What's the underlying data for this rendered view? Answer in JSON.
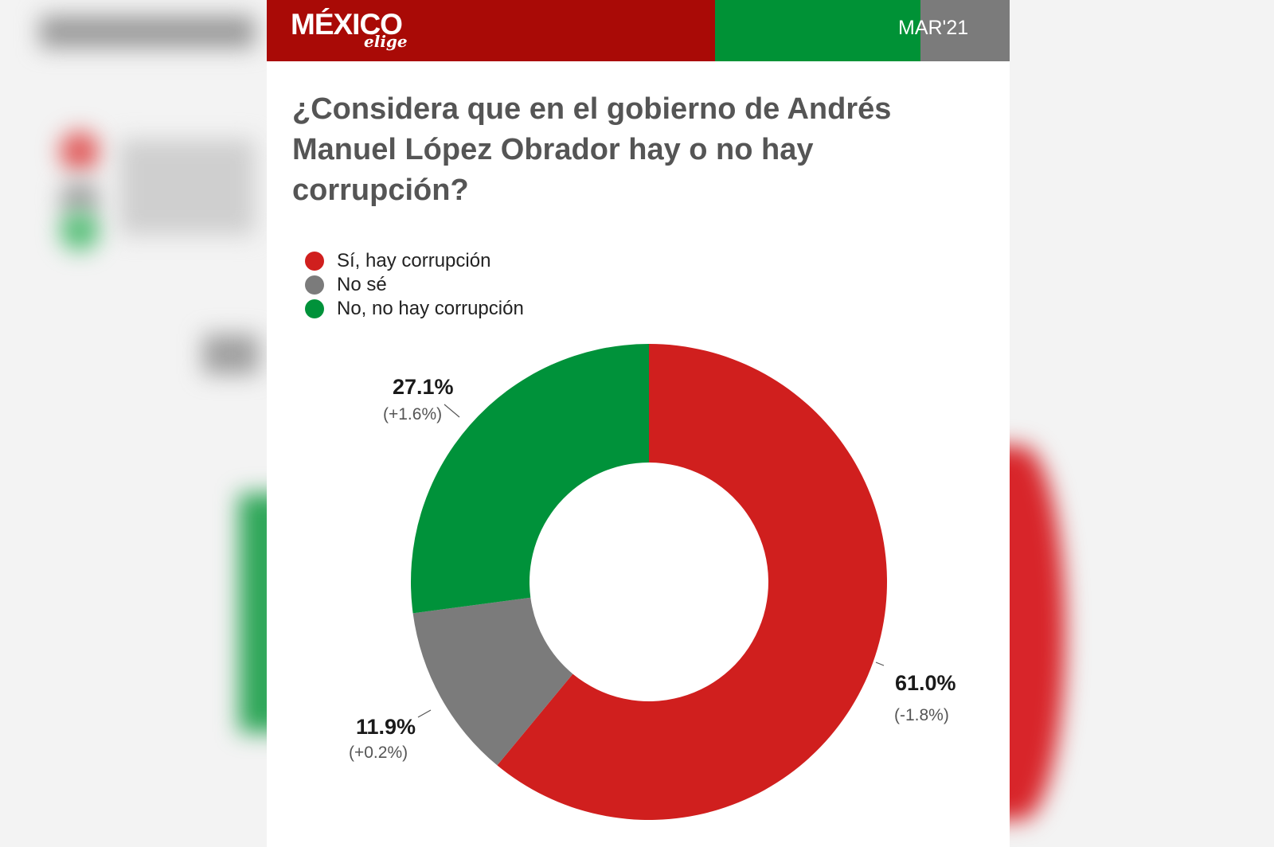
{
  "header": {
    "logo_main": "MÉXICO",
    "logo_sub": "elige",
    "date": "MAR'21",
    "colors": {
      "red": "#a90a06",
      "green": "#009236",
      "grey": "#7b7b7b"
    }
  },
  "chart_data": {
    "type": "pie",
    "title": "¿Considera que en el gobierno de Andrés Manuel López Obrador hay o no hay corrupción?",
    "legend_position": "top-left",
    "categories": [
      "Sí, hay corrupción",
      "No sé",
      "No, no hay corrupción"
    ],
    "values": [
      61.0,
      11.9,
      27.1
    ],
    "value_labels": [
      "61.0%",
      "11.9%",
      "27.1%"
    ],
    "change_labels": [
      "(-1.8%)",
      "(+0.2%)",
      "(+1.6%)"
    ],
    "colors": [
      "#d01f1e",
      "#7b7b7b",
      "#00923a"
    ]
  }
}
